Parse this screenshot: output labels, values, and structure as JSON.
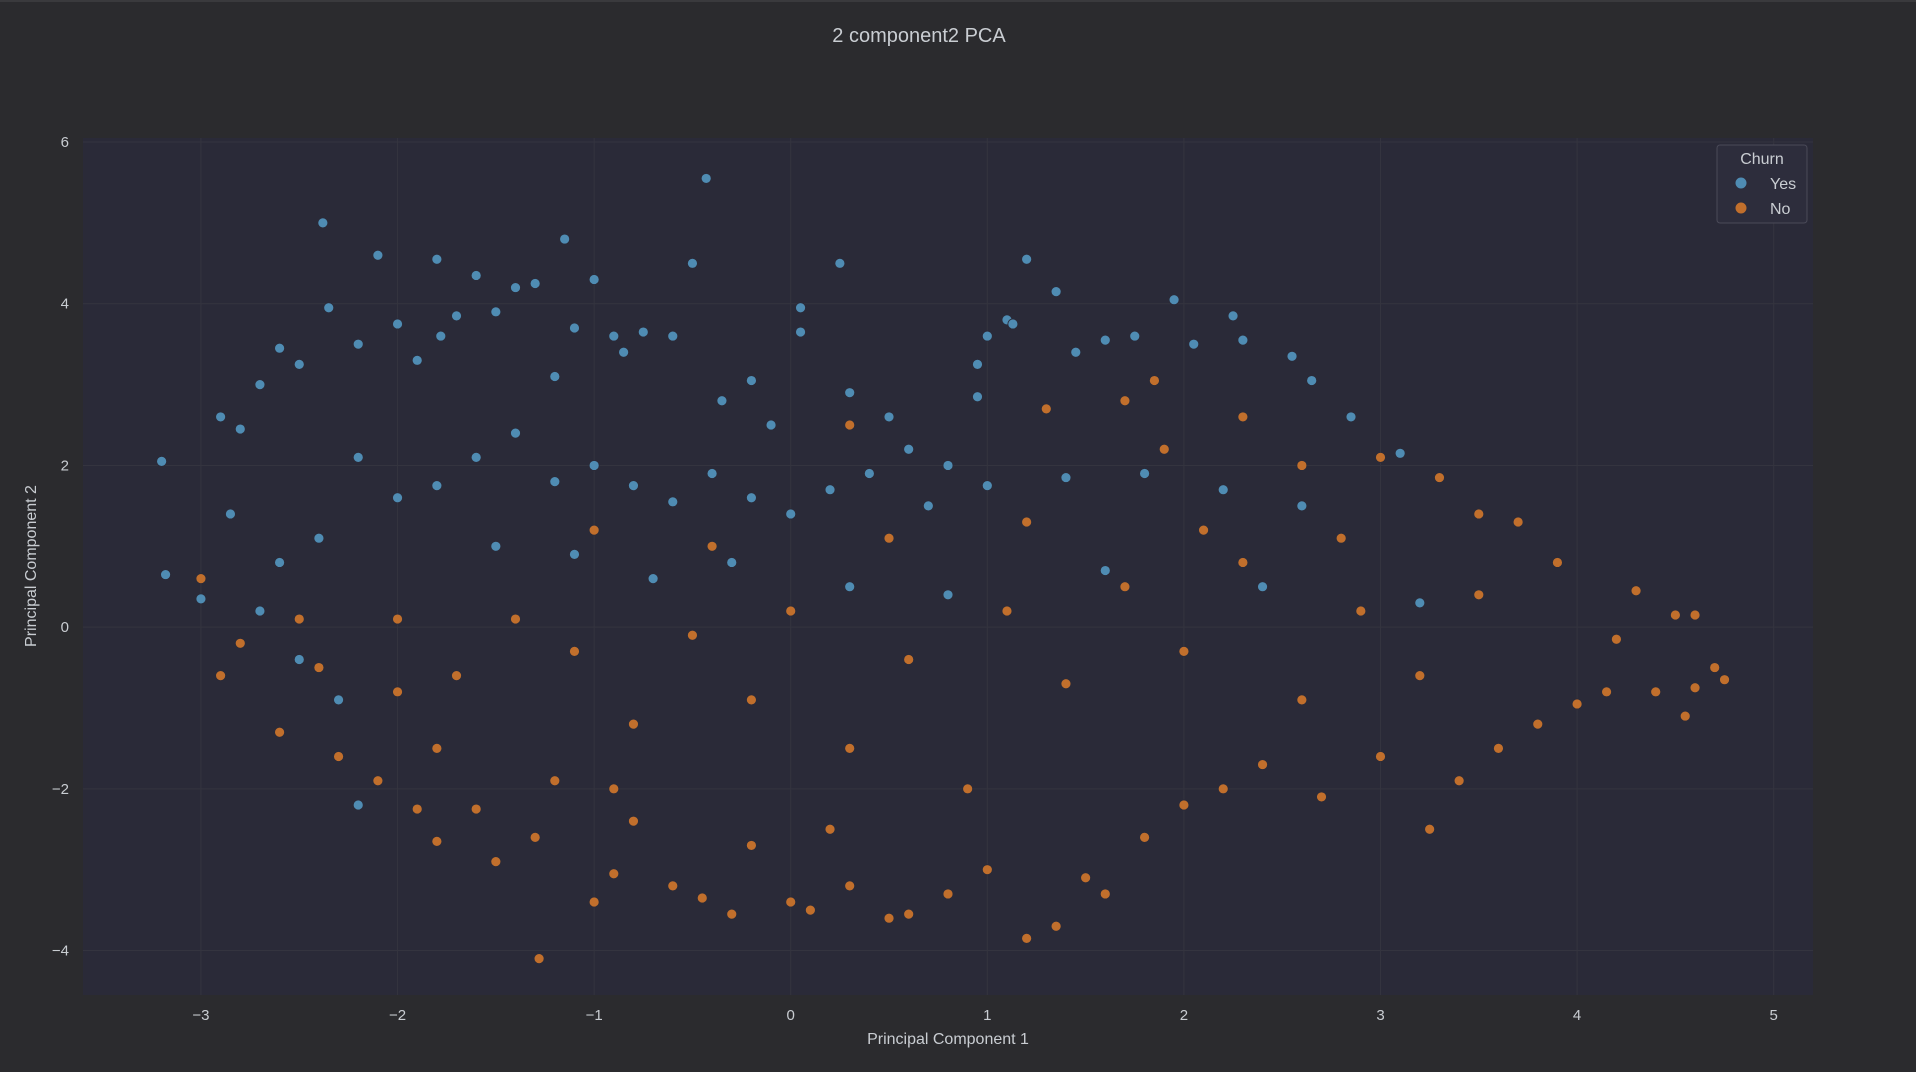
{
  "chart_data": {
    "type": "scatter",
    "title": "2 component2 PCA",
    "xlabel": "Principal Component 1",
    "ylabel": "Principal Component 2",
    "xlim": [
      -3.6,
      5.2
    ],
    "ylim": [
      -4.55,
      6.05
    ],
    "xticks": [
      -3,
      -2,
      -1,
      0,
      1,
      2,
      3,
      4,
      5
    ],
    "xtick_labels": [
      "−3",
      "−2",
      "−1",
      "0",
      "1",
      "2",
      "3",
      "4",
      "5"
    ],
    "yticks": [
      -4,
      -2,
      0,
      2,
      4,
      6
    ],
    "ytick_labels": [
      "−4",
      "−2",
      "0",
      "2",
      "4",
      "6"
    ],
    "grid": true,
    "legend": {
      "title": "Churn",
      "placement": "top-right",
      "entries": [
        "Yes",
        "No"
      ]
    },
    "series": [
      {
        "name": "Yes",
        "color": "#4f8cb3",
        "points": [
          [
            -3.2,
            2.05
          ],
          [
            -3.18,
            0.65
          ],
          [
            -3.0,
            0.35
          ],
          [
            -2.9,
            2.6
          ],
          [
            -2.8,
            2.45
          ],
          [
            -2.85,
            1.4
          ],
          [
            -2.7,
            3.0
          ],
          [
            -2.6,
            3.45
          ],
          [
            -2.5,
            3.25
          ],
          [
            -2.35,
            3.95
          ],
          [
            -2.38,
            5.0
          ],
          [
            -2.2,
            3.5
          ],
          [
            -2.1,
            4.6
          ],
          [
            -2.0,
            3.75
          ],
          [
            -1.9,
            3.3
          ],
          [
            -1.8,
            4.55
          ],
          [
            -1.78,
            3.6
          ],
          [
            -1.7,
            3.85
          ],
          [
            -1.6,
            4.35
          ],
          [
            -1.5,
            3.9
          ],
          [
            -1.4,
            4.2
          ],
          [
            -1.3,
            4.25
          ],
          [
            -1.2,
            3.1
          ],
          [
            -1.15,
            4.8
          ],
          [
            -1.1,
            3.7
          ],
          [
            -1.0,
            4.3
          ],
          [
            -0.9,
            3.6
          ],
          [
            -0.85,
            3.4
          ],
          [
            -0.75,
            3.65
          ],
          [
            -0.6,
            3.6
          ],
          [
            -0.5,
            4.5
          ],
          [
            -0.43,
            5.55
          ],
          [
            -0.35,
            2.8
          ],
          [
            -0.2,
            3.05
          ],
          [
            -0.1,
            2.5
          ],
          [
            0.05,
            3.95
          ],
          [
            0.05,
            3.65
          ],
          [
            0.25,
            4.5
          ],
          [
            0.3,
            2.9
          ],
          [
            0.5,
            2.6
          ],
          [
            0.6,
            2.2
          ],
          [
            0.8,
            2.0
          ],
          [
            0.95,
            3.25
          ],
          [
            0.95,
            2.85
          ],
          [
            1.0,
            3.6
          ],
          [
            1.1,
            3.8
          ],
          [
            1.13,
            3.75
          ],
          [
            1.2,
            4.55
          ],
          [
            1.35,
            4.15
          ],
          [
            1.45,
            3.4
          ],
          [
            1.6,
            3.55
          ],
          [
            1.75,
            3.6
          ],
          [
            1.95,
            4.05
          ],
          [
            2.05,
            3.5
          ],
          [
            2.25,
            3.85
          ],
          [
            2.3,
            3.55
          ],
          [
            2.55,
            3.35
          ],
          [
            2.65,
            3.05
          ],
          [
            2.85,
            2.6
          ],
          [
            3.1,
            2.15
          ],
          [
            -2.2,
            2.1
          ],
          [
            -2.0,
            1.6
          ],
          [
            -1.8,
            1.75
          ],
          [
            -1.6,
            2.1
          ],
          [
            -1.4,
            2.4
          ],
          [
            -1.2,
            1.8
          ],
          [
            -1.0,
            2.0
          ],
          [
            -0.8,
            1.75
          ],
          [
            -0.6,
            1.55
          ],
          [
            -0.4,
            1.9
          ],
          [
            -0.2,
            1.6
          ],
          [
            0.0,
            1.4
          ],
          [
            0.2,
            1.7
          ],
          [
            0.4,
            1.9
          ],
          [
            0.7,
            1.5
          ],
          [
            1.0,
            1.75
          ],
          [
            1.4,
            1.85
          ],
          [
            1.8,
            1.9
          ],
          [
            2.2,
            1.7
          ],
          [
            2.6,
            1.5
          ],
          [
            -2.6,
            0.8
          ],
          [
            -2.4,
            1.1
          ],
          [
            -2.7,
            0.2
          ],
          [
            -2.5,
            -0.4
          ],
          [
            -1.5,
            1.0
          ],
          [
            -1.1,
            0.9
          ],
          [
            -0.7,
            0.6
          ],
          [
            -0.3,
            0.8
          ],
          [
            0.3,
            0.5
          ],
          [
            0.8,
            0.4
          ],
          [
            1.6,
            0.7
          ],
          [
            2.4,
            0.5
          ],
          [
            3.2,
            0.3
          ],
          [
            -2.3,
            -0.9
          ],
          [
            -2.2,
            -2.2
          ]
        ]
      },
      {
        "name": "No",
        "color": "#c16f2c",
        "points": [
          [
            -3.0,
            0.6
          ],
          [
            -2.9,
            -0.6
          ],
          [
            -2.8,
            -0.2
          ],
          [
            -2.6,
            -1.3
          ],
          [
            -2.5,
            0.1
          ],
          [
            -2.3,
            -1.6
          ],
          [
            -2.1,
            -1.9
          ],
          [
            -2.0,
            -0.8
          ],
          [
            -1.9,
            -2.25
          ],
          [
            -1.8,
            -2.65
          ],
          [
            -1.6,
            -2.25
          ],
          [
            -1.5,
            -2.9
          ],
          [
            -1.3,
            -2.6
          ],
          [
            -1.28,
            -4.1
          ],
          [
            -1.2,
            -1.9
          ],
          [
            -1.0,
            -3.4
          ],
          [
            -0.9,
            -3.05
          ],
          [
            -0.8,
            -2.4
          ],
          [
            -0.6,
            -3.2
          ],
          [
            -0.45,
            -3.35
          ],
          [
            -0.3,
            -3.55
          ],
          [
            -0.2,
            -2.7
          ],
          [
            0.0,
            -3.4
          ],
          [
            0.1,
            -3.5
          ],
          [
            0.3,
            -3.2
          ],
          [
            0.5,
            -3.6
          ],
          [
            0.6,
            -3.55
          ],
          [
            0.8,
            -3.3
          ],
          [
            1.0,
            -3.0
          ],
          [
            1.2,
            -3.85
          ],
          [
            1.35,
            -3.7
          ],
          [
            1.5,
            -3.1
          ],
          [
            1.6,
            -3.3
          ],
          [
            1.8,
            -2.6
          ],
          [
            2.0,
            -2.2
          ],
          [
            2.2,
            -2.0
          ],
          [
            2.4,
            -1.7
          ],
          [
            2.7,
            -2.1
          ],
          [
            3.0,
            -1.6
          ],
          [
            3.25,
            -2.5
          ],
          [
            3.4,
            -1.9
          ],
          [
            3.6,
            -1.5
          ],
          [
            3.8,
            -1.2
          ],
          [
            4.0,
            -0.95
          ],
          [
            4.15,
            -0.8
          ],
          [
            4.2,
            -0.15
          ],
          [
            4.3,
            0.45
          ],
          [
            4.4,
            -0.8
          ],
          [
            4.5,
            0.15
          ],
          [
            4.55,
            -1.1
          ],
          [
            4.6,
            -0.75
          ],
          [
            4.7,
            -0.5
          ],
          [
            4.75,
            -0.65
          ],
          [
            4.6,
            0.15
          ],
          [
            3.9,
            0.8
          ],
          [
            3.7,
            1.3
          ],
          [
            3.5,
            1.4
          ],
          [
            3.3,
            1.85
          ],
          [
            3.0,
            2.1
          ],
          [
            2.6,
            2.0
          ],
          [
            1.9,
            2.2
          ],
          [
            1.7,
            2.8
          ],
          [
            1.85,
            3.05
          ],
          [
            2.3,
            2.6
          ],
          [
            0.3,
            2.5
          ],
          [
            1.3,
            2.7
          ],
          [
            -2.0,
            0.1
          ],
          [
            -1.7,
            -0.6
          ],
          [
            -1.4,
            0.1
          ],
          [
            -1.1,
            -0.3
          ],
          [
            -0.8,
            -1.2
          ],
          [
            -0.5,
            -0.1
          ],
          [
            -0.2,
            -0.9
          ],
          [
            0.0,
            0.2
          ],
          [
            0.3,
            -1.5
          ],
          [
            0.6,
            -0.4
          ],
          [
            0.9,
            -2.0
          ],
          [
            1.1,
            0.2
          ],
          [
            1.4,
            -0.7
          ],
          [
            1.7,
            0.5
          ],
          [
            2.0,
            -0.3
          ],
          [
            2.3,
            0.8
          ],
          [
            2.6,
            -0.9
          ],
          [
            2.9,
            0.2
          ],
          [
            3.2,
            -0.6
          ],
          [
            3.5,
            0.4
          ],
          [
            -1.0,
            1.2
          ],
          [
            -0.4,
            1.0
          ],
          [
            0.5,
            1.1
          ],
          [
            1.2,
            1.3
          ],
          [
            2.1,
            1.2
          ],
          [
            2.8,
            1.1
          ],
          [
            -2.4,
            -0.5
          ],
          [
            -1.8,
            -1.5
          ],
          [
            -0.9,
            -2.0
          ],
          [
            0.2,
            -2.5
          ]
        ]
      }
    ]
  }
}
